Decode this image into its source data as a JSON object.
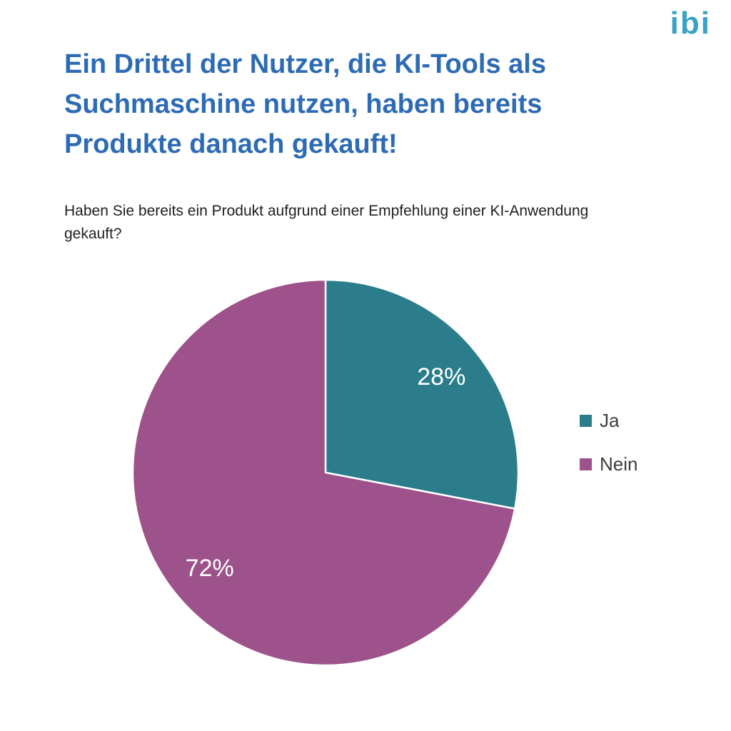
{
  "logo": {
    "text": "ibi",
    "color": "#38a3c4"
  },
  "header": {
    "title_lines": [
      "Ein Drittel der Nutzer, die KI-Tools als",
      "Suchmaschine nutzen, haben bereits",
      "Produkte danach gekauft!"
    ],
    "question_lines": [
      "Haben Sie bereits ein Produkt aufgrund einer Empfehlung einer KI-Anwendung",
      "gekauft?"
    ]
  },
  "chart_data": {
    "type": "pie",
    "title": "Ein Drittel der Nutzer, die KI-Tools als Suchmaschine nutzen, haben bereits Produkte danach gekauft!",
    "question": "Haben Sie bereits ein Produkt aufgrund einer Empfehlung einer KI-Anwendung gekauft?",
    "labels": [
      "Ja",
      "Nein"
    ],
    "values": [
      28,
      72
    ],
    "data_labels": [
      "28%",
      "72%"
    ],
    "colors": [
      "#2b7d8c",
      "#9d528b"
    ],
    "start_angle_deg": 0,
    "direction": "clockwise",
    "legend_position": "right"
  }
}
